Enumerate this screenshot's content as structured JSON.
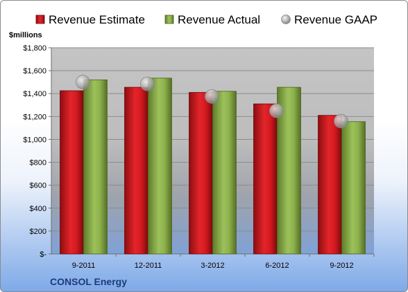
{
  "chart_data": {
    "type": "bar",
    "title": "",
    "company": "CONSOL Energy",
    "ylabel": "$millions",
    "xlabel": "",
    "ylim": [
      0,
      1800
    ],
    "y_ticks": [
      0,
      200,
      400,
      600,
      800,
      1000,
      1200,
      1400,
      1600,
      1800
    ],
    "y_tick_labels": [
      "$-",
      "$200",
      "$400",
      "$600",
      "$800",
      "$1,000",
      "$1,200",
      "$1,400",
      "$1,600",
      "$1,800"
    ],
    "categories": [
      "9-2011",
      "12-2011",
      "3-2012",
      "6-2012",
      "9-2012"
    ],
    "series": [
      {
        "name": "Revenue Estimate",
        "kind": "bar",
        "color": "#d9151b",
        "values": [
          1425,
          1455,
          1410,
          1310,
          1210
        ]
      },
      {
        "name": "Revenue Actual",
        "kind": "bar",
        "color": "#8bb04a",
        "values": [
          1520,
          1535,
          1420,
          1455,
          1155
        ]
      },
      {
        "name": "Revenue GAAP",
        "kind": "marker",
        "color": "#b3b3b3",
        "values": [
          1500,
          1485,
          1375,
          1250,
          1160
        ]
      }
    ],
    "legend_position": "top",
    "grid": true,
    "plot_background": "#c0c0c0"
  }
}
